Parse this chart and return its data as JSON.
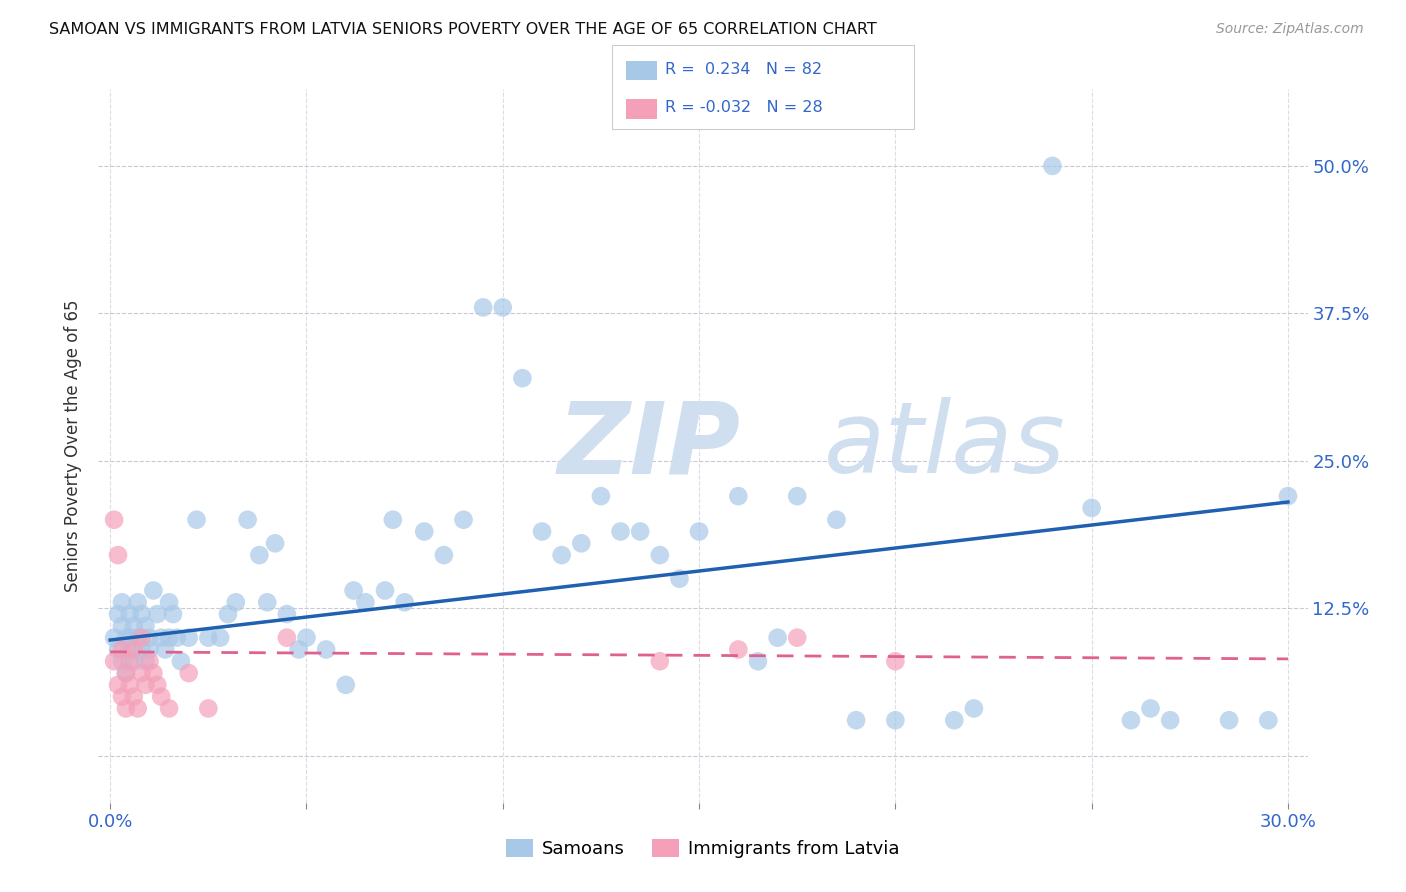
{
  "title": "SAMOAN VS IMMIGRANTS FROM LATVIA SENIORS POVERTY OVER THE AGE OF 65 CORRELATION CHART",
  "source": "Source: ZipAtlas.com",
  "ylabel": "Seniors Poverty Over the Age of 65",
  "xlim": [
    -0.003,
    0.305
  ],
  "ylim": [
    -0.04,
    0.565
  ],
  "yticks": [
    0.0,
    0.125,
    0.25,
    0.375,
    0.5
  ],
  "ytick_labels_right": [
    "",
    "12.5%",
    "25.0%",
    "37.5%",
    "50.0%"
  ],
  "xticks": [
    0.0,
    0.05,
    0.1,
    0.15,
    0.2,
    0.25,
    0.3
  ],
  "xtick_labels": [
    "0.0%",
    "",
    "",
    "",
    "",
    "",
    "30.0%"
  ],
  "color_samoan": "#A8C8E8",
  "color_latvia": "#F4A0B8",
  "trendline_samoan_color": "#2060B0",
  "trendline_latvia_color": "#E06090",
  "watermark_zip": "ZIP",
  "watermark_atlas": "atlas",
  "watermark_color": "#D0DFF0",
  "samoan_x": [
    0.001,
    0.002,
    0.002,
    0.003,
    0.003,
    0.003,
    0.004,
    0.004,
    0.005,
    0.005,
    0.005,
    0.006,
    0.006,
    0.007,
    0.007,
    0.008,
    0.008,
    0.009,
    0.009,
    0.01,
    0.01,
    0.011,
    0.012,
    0.013,
    0.014,
    0.015,
    0.015,
    0.016,
    0.017,
    0.018,
    0.02,
    0.022,
    0.025,
    0.028,
    0.03,
    0.032,
    0.035,
    0.038,
    0.04,
    0.042,
    0.045,
    0.048,
    0.05,
    0.055,
    0.06,
    0.062,
    0.065,
    0.07,
    0.072,
    0.075,
    0.08,
    0.085,
    0.09,
    0.095,
    0.1,
    0.105,
    0.11,
    0.115,
    0.12,
    0.125,
    0.13,
    0.135,
    0.14,
    0.145,
    0.15,
    0.16,
    0.165,
    0.17,
    0.175,
    0.185,
    0.19,
    0.2,
    0.215,
    0.22,
    0.24,
    0.25,
    0.26,
    0.265,
    0.27,
    0.285,
    0.295,
    0.3
  ],
  "samoan_y": [
    0.1,
    0.12,
    0.09,
    0.11,
    0.08,
    0.13,
    0.1,
    0.07,
    0.12,
    0.1,
    0.09,
    0.11,
    0.08,
    0.1,
    0.13,
    0.12,
    0.09,
    0.08,
    0.11,
    0.1,
    0.09,
    0.14,
    0.12,
    0.1,
    0.09,
    0.13,
    0.1,
    0.12,
    0.1,
    0.08,
    0.1,
    0.2,
    0.1,
    0.1,
    0.12,
    0.13,
    0.2,
    0.17,
    0.13,
    0.18,
    0.12,
    0.09,
    0.1,
    0.09,
    0.06,
    0.14,
    0.13,
    0.14,
    0.2,
    0.13,
    0.19,
    0.17,
    0.2,
    0.38,
    0.38,
    0.32,
    0.19,
    0.17,
    0.18,
    0.22,
    0.19,
    0.19,
    0.17,
    0.15,
    0.19,
    0.22,
    0.08,
    0.1,
    0.22,
    0.2,
    0.03,
    0.03,
    0.03,
    0.04,
    0.5,
    0.21,
    0.03,
    0.04,
    0.03,
    0.03,
    0.03,
    0.22
  ],
  "latvia_x": [
    0.001,
    0.001,
    0.002,
    0.002,
    0.003,
    0.003,
    0.004,
    0.004,
    0.005,
    0.005,
    0.006,
    0.006,
    0.007,
    0.008,
    0.008,
    0.009,
    0.01,
    0.011,
    0.012,
    0.013,
    0.015,
    0.02,
    0.025,
    0.045,
    0.14,
    0.16,
    0.175,
    0.2
  ],
  "latvia_y": [
    0.2,
    0.08,
    0.17,
    0.06,
    0.09,
    0.05,
    0.07,
    0.04,
    0.08,
    0.06,
    0.05,
    0.09,
    0.04,
    0.1,
    0.07,
    0.06,
    0.08,
    0.07,
    0.06,
    0.05,
    0.04,
    0.07,
    0.04,
    0.1,
    0.08,
    0.09,
    0.1,
    0.08
  ],
  "trendline_samoan_x0": 0.0,
  "trendline_samoan_y0": 0.098,
  "trendline_samoan_x1": 0.3,
  "trendline_samoan_y1": 0.215,
  "trendline_latvia_x0": 0.0,
  "trendline_latvia_y0": 0.088,
  "trendline_latvia_x1": 0.3,
  "trendline_latvia_y1": 0.082
}
